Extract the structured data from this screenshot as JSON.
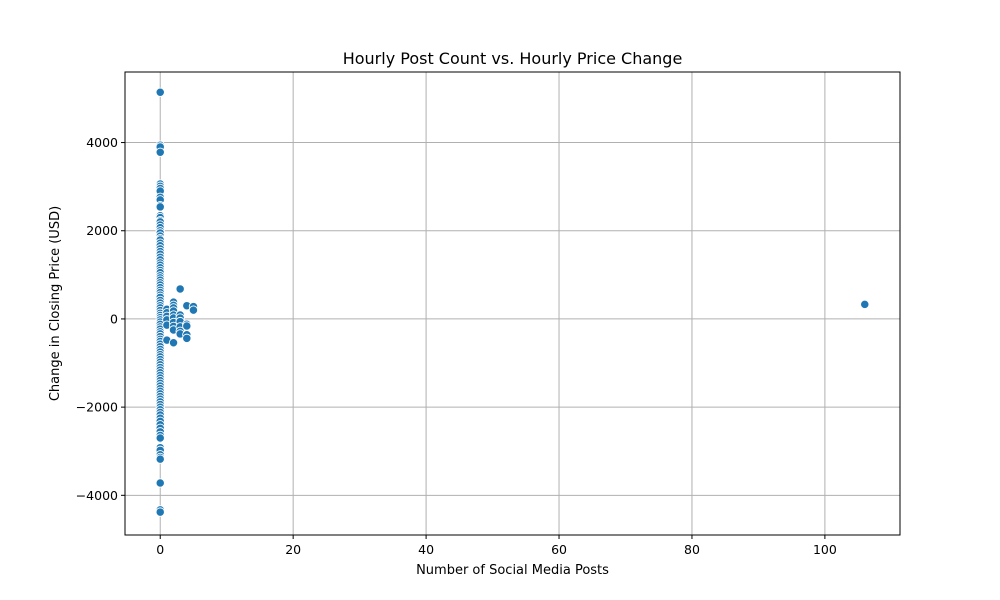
{
  "chart_data": {
    "type": "scatter",
    "title": "Hourly Post Count vs. Hourly Price Change",
    "xlabel": "Number of Social Media Posts",
    "ylabel": "Change in Closing Price (USD)",
    "xlim": [
      -5.3,
      111.3
    ],
    "ylim": [
      -4900,
      5600
    ],
    "xticks": [
      0,
      20,
      40,
      60,
      80,
      100
    ],
    "yticks": [
      -4000,
      -2000,
      0,
      2000,
      4000
    ],
    "xtick_labels": [
      "0",
      "20",
      "40",
      "60",
      "80",
      "100"
    ],
    "ytick_labels": [
      "−4000",
      "−2000",
      "0",
      "2000",
      "4000"
    ],
    "grid": true,
    "color": "#1f77b4",
    "points": [
      [
        0,
        5140
      ],
      [
        0,
        3940
      ],
      [
        0,
        3900
      ],
      [
        0,
        3780
      ],
      [
        0,
        3060
      ],
      [
        0,
        3010
      ],
      [
        0,
        2960
      ],
      [
        0,
        2900
      ],
      [
        0,
        2760
      ],
      [
        0,
        2700
      ],
      [
        0,
        2570
      ],
      [
        0,
        2540
      ],
      [
        0,
        2340
      ],
      [
        0,
        2300
      ],
      [
        0,
        2230
      ],
      [
        0,
        2200
      ],
      [
        0,
        2130
      ],
      [
        0,
        2070
      ],
      [
        0,
        2000
      ],
      [
        0,
        1950
      ],
      [
        0,
        1880
      ],
      [
        0,
        1820
      ],
      [
        0,
        1790
      ],
      [
        0,
        1720
      ],
      [
        0,
        1660
      ],
      [
        0,
        1590
      ],
      [
        0,
        1530
      ],
      [
        0,
        1470
      ],
      [
        0,
        1400
      ],
      [
        0,
        1340
      ],
      [
        0,
        1270
      ],
      [
        0,
        1220
      ],
      [
        0,
        1160
      ],
      [
        0,
        1100
      ],
      [
        0,
        1050
      ],
      [
        0,
        980
      ],
      [
        0,
        930
      ],
      [
        0,
        880
      ],
      [
        0,
        820
      ],
      [
        0,
        770
      ],
      [
        0,
        710
      ],
      [
        0,
        650
      ],
      [
        0,
        600
      ],
      [
        0,
        540
      ],
      [
        0,
        490
      ],
      [
        0,
        420
      ],
      [
        0,
        360
      ],
      [
        0,
        300
      ],
      [
        0,
        250
      ],
      [
        0,
        190
      ],
      [
        0,
        130
      ],
      [
        0,
        80
      ],
      [
        0,
        30
      ],
      [
        0,
        -20
      ],
      [
        0,
        -70
      ],
      [
        0,
        -120
      ],
      [
        0,
        -180
      ],
      [
        0,
        -230
      ],
      [
        0,
        -290
      ],
      [
        0,
        -340
      ],
      [
        0,
        -400
      ],
      [
        0,
        -460
      ],
      [
        0,
        -510
      ],
      [
        0,
        -570
      ],
      [
        0,
        -630
      ],
      [
        0,
        -690
      ],
      [
        0,
        -750
      ],
      [
        0,
        -810
      ],
      [
        0,
        -860
      ],
      [
        0,
        -920
      ],
      [
        0,
        -980
      ],
      [
        0,
        -1040
      ],
      [
        0,
        -1100
      ],
      [
        0,
        -1160
      ],
      [
        0,
        -1220
      ],
      [
        0,
        -1280
      ],
      [
        0,
        -1340
      ],
      [
        0,
        -1400
      ],
      [
        0,
        -1460
      ],
      [
        0,
        -1520
      ],
      [
        0,
        -1580
      ],
      [
        0,
        -1640
      ],
      [
        0,
        -1700
      ],
      [
        0,
        -1760
      ],
      [
        0,
        -1820
      ],
      [
        0,
        -1880
      ],
      [
        0,
        -1940
      ],
      [
        0,
        -2000
      ],
      [
        0,
        -2060
      ],
      [
        0,
        -2120
      ],
      [
        0,
        -2180
      ],
      [
        0,
        -2250
      ],
      [
        0,
        -2320
      ],
      [
        0,
        -2400
      ],
      [
        0,
        -2480
      ],
      [
        0,
        -2560
      ],
      [
        0,
        -2640
      ],
      [
        0,
        -2700
      ],
      [
        0,
        -2920
      ],
      [
        0,
        -2980
      ],
      [
        0,
        -3080
      ],
      [
        0,
        -3140
      ],
      [
        0,
        -3180
      ],
      [
        0,
        -3720
      ],
      [
        0,
        -4330
      ],
      [
        0,
        -4380
      ],
      [
        1,
        220
      ],
      [
        1,
        140
      ],
      [
        1,
        60
      ],
      [
        1,
        -20
      ],
      [
        1,
        -140
      ],
      [
        1,
        -480
      ],
      [
        2,
        380
      ],
      [
        2,
        310
      ],
      [
        2,
        250
      ],
      [
        2,
        180
      ],
      [
        2,
        90
      ],
      [
        2,
        20
      ],
      [
        2,
        -80
      ],
      [
        2,
        -170
      ],
      [
        2,
        -250
      ],
      [
        2,
        -540
      ],
      [
        3,
        680
      ],
      [
        3,
        90
      ],
      [
        3,
        20
      ],
      [
        3,
        -60
      ],
      [
        3,
        -180
      ],
      [
        3,
        -280
      ],
      [
        3,
        -340
      ],
      [
        4,
        300
      ],
      [
        4,
        -120
      ],
      [
        4,
        -160
      ],
      [
        4,
        -360
      ],
      [
        4,
        -440
      ],
      [
        5,
        280
      ],
      [
        5,
        200
      ],
      [
        106,
        330
      ]
    ]
  }
}
